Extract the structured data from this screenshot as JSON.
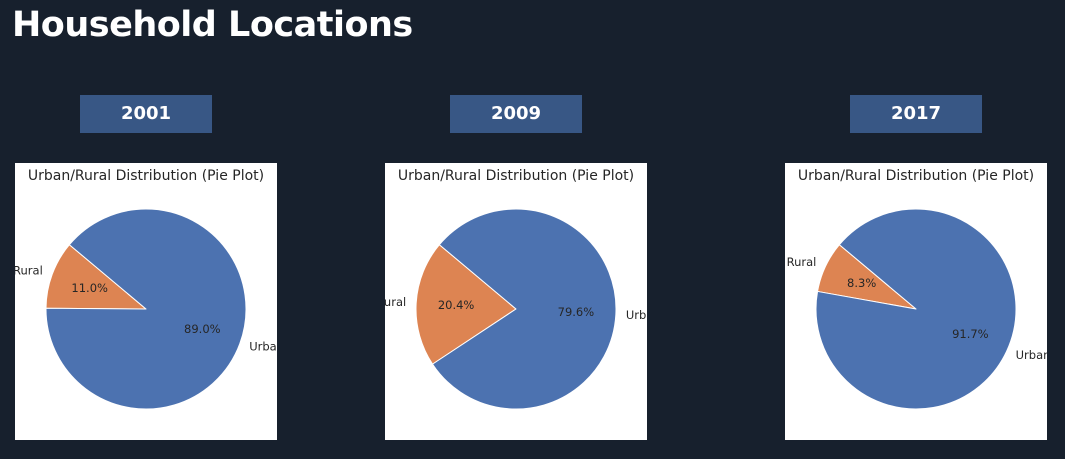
{
  "page": {
    "title": "Household Locations"
  },
  "colors": {
    "background": "#17202d",
    "badge": "#385785",
    "urban": "#4c72b0",
    "rural": "#dd8452"
  },
  "chart_data": [
    {
      "type": "pie",
      "year": "2001",
      "title": "Urban/Rural Distribution (Pie Plot)",
      "labels": [
        "Rural",
        "Urban"
      ],
      "values": [
        11.0,
        89.0
      ],
      "percent_labels": [
        "11.0%",
        "89.0%"
      ]
    },
    {
      "type": "pie",
      "year": "2009",
      "title": "Urban/Rural Distribution (Pie Plot)",
      "labels": [
        "Rural",
        "Urban"
      ],
      "values": [
        20.4,
        79.6
      ],
      "percent_labels": [
        "20.4%",
        "79.6%"
      ]
    },
    {
      "type": "pie",
      "year": "2017",
      "title": "Urban/Rural Distribution (Pie Plot)",
      "labels": [
        "Rural",
        "Urban"
      ],
      "values": [
        8.3,
        91.7
      ],
      "percent_labels": [
        "8.3%",
        "91.7%"
      ]
    }
  ]
}
